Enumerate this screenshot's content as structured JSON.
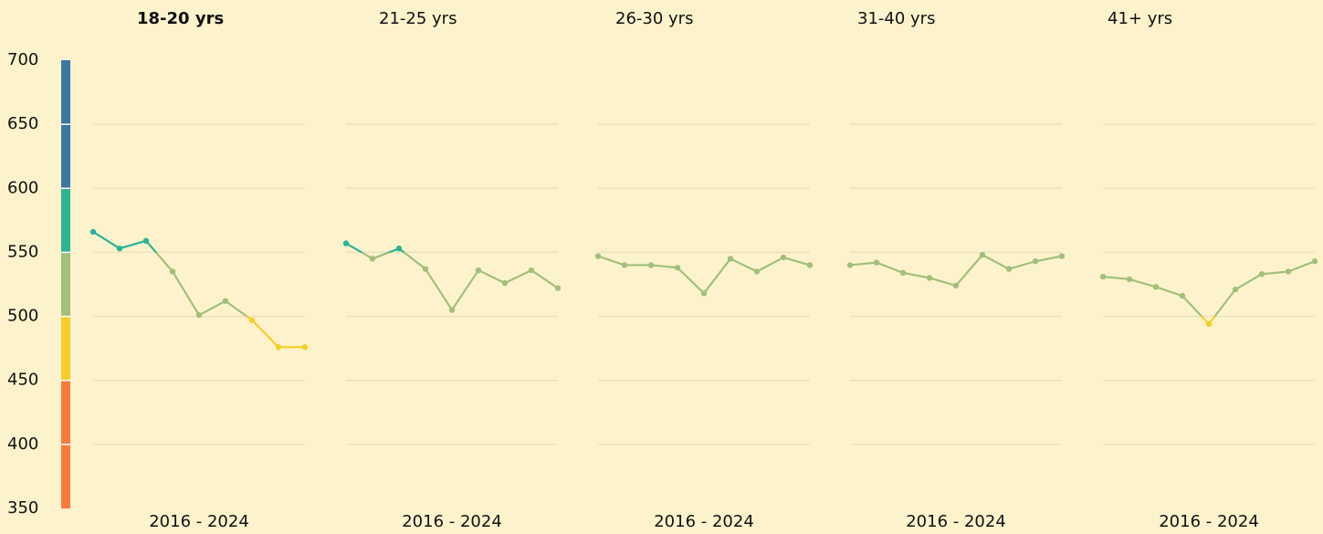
{
  "chart_data": {
    "type": "line",
    "ylim": [
      350,
      700
    ],
    "yticks": [
      350,
      400,
      450,
      500,
      550,
      600,
      650,
      700
    ],
    "band_colors": [
      "#fb7b3b",
      "#fb7b3b",
      "#f4cf2c",
      "#a2bf7b",
      "#2bb393",
      "#3a77a2",
      "#3a77a2"
    ],
    "x_label": "2016 - 2024",
    "series": [
      {
        "name": "18-20 yrs",
        "values": [
          566,
          553,
          559,
          535,
          501,
          512,
          497,
          476,
          476
        ]
      },
      {
        "name": "21-25 yrs",
        "values": [
          557,
          545,
          553,
          537,
          505,
          536,
          526,
          536,
          522
        ]
      },
      {
        "name": "26-30 yrs",
        "values": [
          547,
          540,
          540,
          538,
          518,
          545,
          535,
          546,
          540
        ]
      },
      {
        "name": "31-40 yrs",
        "values": [
          540,
          542,
          534,
          530,
          524,
          548,
          537,
          543,
          547
        ]
      },
      {
        "name": "41+ yrs",
        "values": [
          531,
          529,
          523,
          516,
          494,
          521,
          533,
          535,
          543
        ]
      }
    ]
  }
}
